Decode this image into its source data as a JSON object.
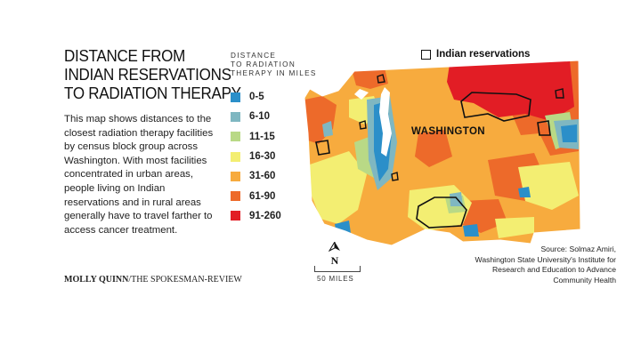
{
  "title_lines": [
    "DISTANCE FROM",
    "INDIAN RESERVATIONS",
    "TO RADIATION THERAPY"
  ],
  "description": "This map shows distances to the closest radiation therapy facilities by census block group across Washington. With most facilities concentrated in urban areas, people living on Indian reservations and in rural areas generally have to travel farther to access cancer treatment.",
  "credit": {
    "name": "MOLLY QUINN",
    "org": "/THE SPOKESMAN-REVIEW"
  },
  "legend": {
    "title_lines": [
      "DISTANCE",
      "TO RADIATION",
      "THERAPY IN MILES"
    ],
    "items": [
      {
        "label": "0-5",
        "color": "#2b8fc9"
      },
      {
        "label": "6-10",
        "color": "#7fb7c1"
      },
      {
        "label": "11-15",
        "color": "#b9d986"
      },
      {
        "label": "16-30",
        "color": "#f3ee72"
      },
      {
        "label": "31-60",
        "color": "#f7ab3e"
      },
      {
        "label": "61-90",
        "color": "#ed6a2a"
      },
      {
        "label": "91-260",
        "color": "#e21d25"
      }
    ]
  },
  "reservations_label": "Indian reservations",
  "state_label": "WASHINGTON",
  "north_label": "N",
  "scale_label": "50 MILES",
  "source_lines": [
    "Source: Solmaz Amiri,",
    "Washington State University's Institute for",
    "Research and Education to Advance",
    "Community Health"
  ],
  "colors": {
    "water": "#ffffff",
    "reservation_outline": "#111111"
  }
}
